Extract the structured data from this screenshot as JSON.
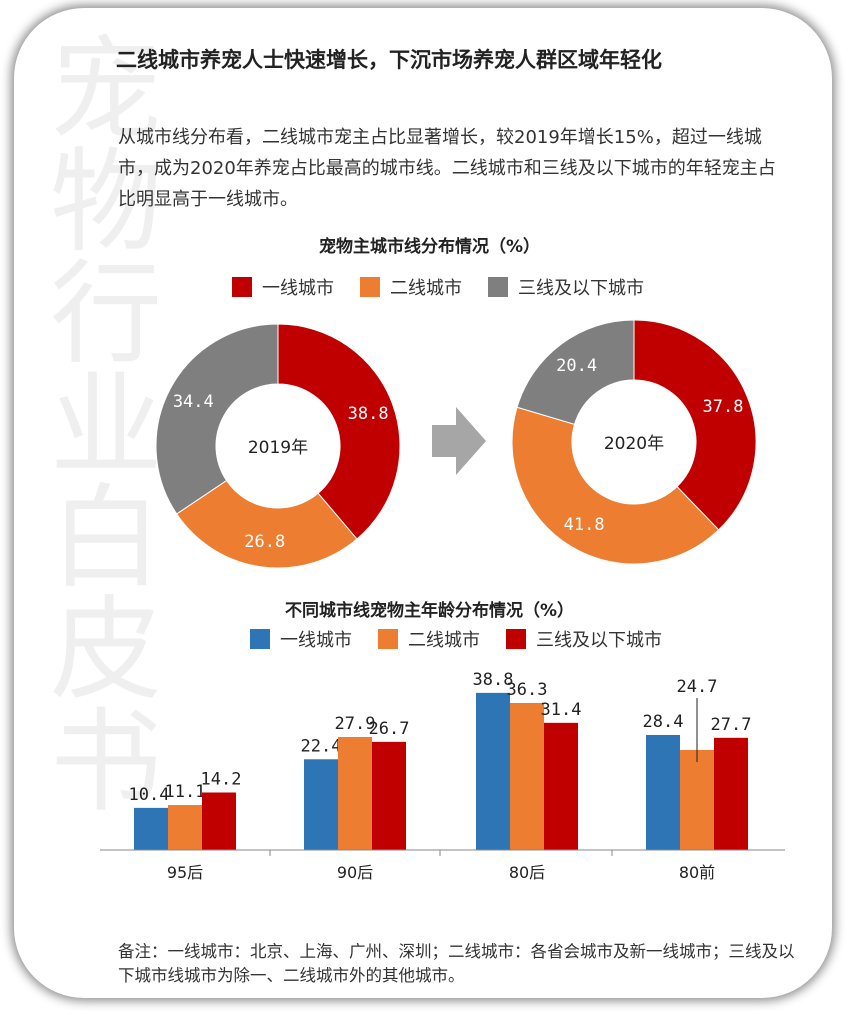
{
  "watermark": "宠物行业白皮书",
  "title": "二线城市养宠人士快速增长，下沉市场养宠人群区域年轻化",
  "paragraph": "从城市线分布看，二线城市宠主占比显著增长，较2019年增长15%，超过一线城市，成为2020年养宠占比最高的城市线。二线城市和三线及以下城市的年轻宠主占比明显高于一线城市。",
  "note": "备注：一线城市：北京、上海、广州、深圳；二线城市：各省会城市及新一线城市；三线及以下城市线城市为除一、二线城市外的其他城市。",
  "chart_data": [
    {
      "type": "pie",
      "donut": true,
      "title": "宠物主城市线分布情况（%）",
      "legend": [
        "一线城市",
        "二线城市",
        "三线及以下城市"
      ],
      "colors": [
        "#c00000",
        "#ed7d31",
        "#7f7f7f"
      ],
      "charts": [
        {
          "label": "2019年",
          "values": [
            38.8,
            26.8,
            34.4
          ]
        },
        {
          "label": "2020年",
          "values": [
            37.8,
            41.8,
            20.4
          ]
        }
      ],
      "arrow_icon": "right-arrow-icon"
    },
    {
      "type": "bar",
      "title": "不同城市线宠物主年龄分布情况（%）",
      "categories": [
        "95后",
        "90后",
        "80后",
        "80前"
      ],
      "colors": [
        "#2e75b6",
        "#ed7d31",
        "#c00000"
      ],
      "series": [
        {
          "name": "一线城市",
          "values": [
            10.4,
            22.4,
            38.8,
            28.4
          ]
        },
        {
          "name": "二线城市",
          "values": [
            11.1,
            27.9,
            36.3,
            24.7
          ]
        },
        {
          "name": "三线及以下城市",
          "values": [
            14.2,
            26.7,
            31.4,
            27.7
          ]
        }
      ],
      "ylim": [
        0,
        40
      ]
    }
  ]
}
